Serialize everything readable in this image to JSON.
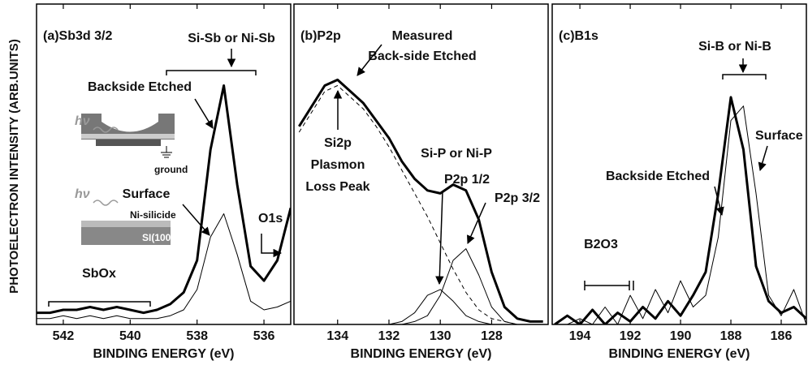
{
  "chart_data": [
    {
      "type": "line",
      "title": "(a)Sb3d 3/2",
      "xlabel": "BINDING ENERGY (eV)",
      "ylabel": "PHOTOELECTRON INTENSITY (ARB.UNITS)",
      "xlim": [
        542.8,
        535.2
      ],
      "xticks": [
        542,
        540,
        538,
        536
      ],
      "ylim": [
        0,
        110
      ],
      "x": [
        542.8,
        542.4,
        542.0,
        541.6,
        541.2,
        540.8,
        540.4,
        540.0,
        539.6,
        539.2,
        538.8,
        538.4,
        538.0,
        537.6,
        537.2,
        536.8,
        536.4,
        536.0,
        535.6,
        535.2
      ],
      "series": [
        {
          "name": "Backside Etched",
          "color": "#000000",
          "line_width": 3,
          "values": [
            4,
            4,
            5,
            5,
            6,
            5,
            6,
            5,
            4,
            5,
            7,
            11,
            22,
            60,
            82,
            48,
            20,
            15,
            22,
            40
          ]
        },
        {
          "name": "Surface",
          "color": "#000000",
          "line_width": 1,
          "values": [
            2,
            2,
            3,
            2,
            3,
            2,
            3,
            2,
            2,
            2,
            3,
            5,
            12,
            30,
            38,
            24,
            8,
            5,
            6,
            8
          ]
        }
      ],
      "annotations": [
        "Si-Sb or Ni-Sb",
        "O1s",
        "SbOx"
      ],
      "inset_labels": [
        "hν",
        "ground",
        "hν",
        "Ni-silicide",
        "SI(100)"
      ]
    },
    {
      "type": "line",
      "title": "(b)P2p",
      "xlabel": "BINDING ENERGY (eV)",
      "xlim": [
        135.7,
        125.8
      ],
      "xticks": [
        134,
        132,
        130,
        128
      ],
      "ylim": [
        0,
        110
      ],
      "x": [
        135.5,
        135.0,
        134.5,
        134.0,
        133.5,
        133.0,
        132.5,
        132.0,
        131.5,
        131.0,
        130.5,
        130.0,
        129.5,
        129.0,
        128.5,
        128.0,
        127.5,
        127.0,
        126.5,
        126.0
      ],
      "series": [
        {
          "color": "#000000",
          "line_width": 3,
          "values": [
            68,
            75,
            82,
            84,
            80,
            76,
            70,
            64,
            56,
            50,
            46,
            45,
            48,
            46,
            36,
            18,
            6,
            2,
            1,
            1
          ]
        },
        {
          "color": "#000000",
          "line_width": 1,
          "dashed": true,
          "values": [
            66,
            73,
            80,
            82,
            78,
            74,
            68,
            61,
            53,
            45,
            37,
            28,
            19,
            11,
            5,
            2,
            1,
            0,
            0,
            0
          ]
        },
        {
          "color": "#000000",
          "line_width": 1,
          "values": [
            0,
            0,
            0,
            0,
            0,
            0,
            0,
            0,
            1,
            4,
            10,
            12,
            8,
            3,
            1,
            0,
            0,
            0,
            0,
            0
          ]
        },
        {
          "color": "#000000",
          "line_width": 1,
          "values": [
            0,
            0,
            0,
            0,
            0,
            0,
            0,
            0,
            0,
            1,
            3,
            10,
            22,
            26,
            17,
            6,
            1,
            0,
            0,
            0
          ]
        }
      ],
      "annotations": [
        "Measured",
        "Back-side Etched",
        "Si2p",
        "Plasmon",
        "Loss Peak",
        "Si-P or Ni-P",
        "P2p 1/2",
        "P2p 3/2"
      ]
    },
    {
      "type": "line",
      "title": "(c)B1s",
      "xlabel": "BINDING ENERGY (eV)",
      "xlim": [
        195.1,
        185.0
      ],
      "xticks": [
        194,
        192,
        190,
        188,
        186
      ],
      "ylim": [
        0,
        110
      ],
      "x": [
        195,
        194.5,
        194,
        193.5,
        193,
        192.5,
        192,
        191.5,
        191,
        190.5,
        190,
        189.5,
        189,
        188.5,
        188,
        187.5,
        187,
        186.5,
        186,
        185.5,
        185
      ],
      "series": [
        {
          "name": "Backside Etched",
          "color": "#000000",
          "line_width": 3,
          "values": [
            0,
            3,
            0,
            5,
            0,
            4,
            1,
            6,
            2,
            8,
            3,
            10,
            18,
            45,
            78,
            60,
            20,
            8,
            4,
            6,
            2
          ]
        },
        {
          "name": "Surface",
          "color": "#000000",
          "line_width": 1,
          "values": [
            0,
            0,
            2,
            0,
            6,
            0,
            10,
            2,
            12,
            4,
            15,
            6,
            10,
            30,
            70,
            75,
            45,
            10,
            3,
            12,
            0
          ]
        }
      ],
      "annotations": [
        "Si-B or Ni-B",
        "B2O3"
      ]
    }
  ]
}
